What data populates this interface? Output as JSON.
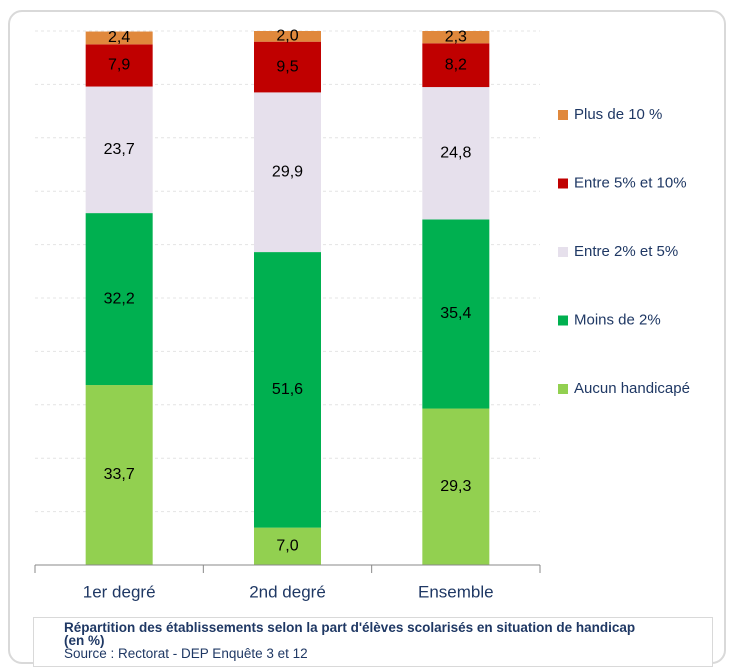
{
  "chart_data": {
    "type": "stacked_bar",
    "title": "Répartition des établissements selon la part d'élèves scolarisés en situation de handicap (en %)",
    "source": "Source : Rectorat - DEP Enquête 3 et 12",
    "categories": [
      "1er degré",
      "2nd degré",
      "Ensemble"
    ],
    "series": [
      {
        "name": "Aucun handicapé",
        "color": "#92d050",
        "values": [
          33.7,
          7.0,
          29.3
        ],
        "value_labels": [
          "33,7",
          "7,0",
          "29,3"
        ]
      },
      {
        "name": "Moins de 2%",
        "color": "#00b050",
        "values": [
          32.2,
          51.6,
          35.4
        ],
        "value_labels": [
          "32,2",
          "51,6",
          "35,4"
        ]
      },
      {
        "name": "Entre 2% et 5%",
        "color": "#e6e0ec",
        "values": [
          23.7,
          29.9,
          24.8
        ],
        "value_labels": [
          "23,7",
          "29,9",
          "24,8"
        ]
      },
      {
        "name": "Entre 5% et 10%",
        "color": "#c00000",
        "values": [
          7.9,
          9.5,
          8.2
        ],
        "value_labels": [
          "7,9",
          "9,5",
          "8,2"
        ]
      },
      {
        "name": "Plus de 10 %",
        "color": "#e0883c",
        "values": [
          2.4,
          2.0,
          2.3
        ],
        "value_labels": [
          "2,4",
          "2,0",
          "2,3"
        ]
      }
    ],
    "ylim": [
      0,
      100
    ],
    "yticks": [
      0,
      10,
      20,
      30,
      40,
      50,
      60,
      70,
      80,
      90,
      100
    ],
    "grid": true,
    "legend": "right"
  }
}
